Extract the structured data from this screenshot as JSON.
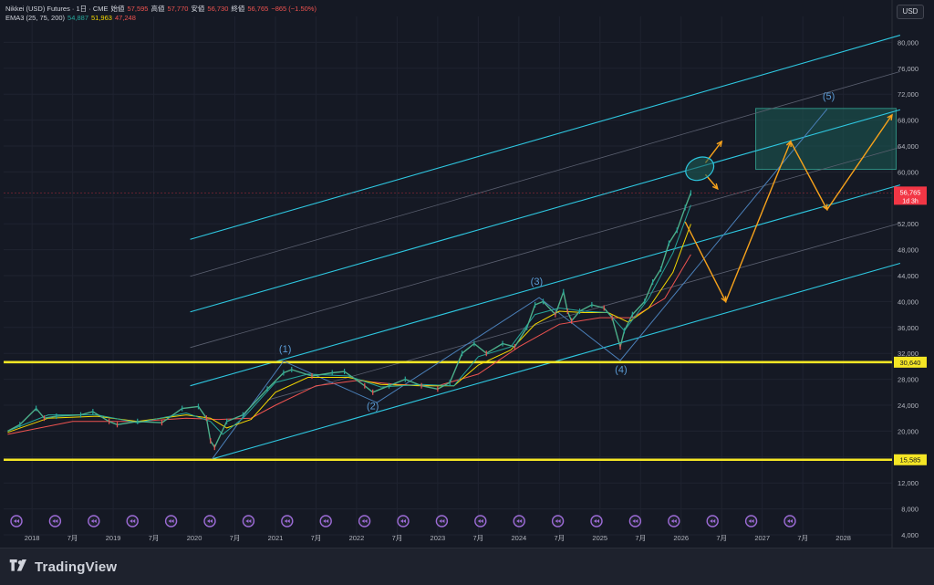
{
  "legend": {
    "symbol": "Nikkei (USD) Futures · 1日 · CME",
    "open_label": "始値",
    "open": "57,595",
    "high_label": "高値",
    "high": "57,770",
    "low_label": "安値",
    "low": "56,730",
    "close_label": "終値",
    "close": "56,765",
    "change": "−865 (−1.50%)",
    "ema_label": "EMA3 (25, 75, 200)",
    "ema_values": [
      "54,887",
      "51,963",
      "47,248"
    ]
  },
  "currency_button": "USD",
  "branding": "TradingView",
  "colors": {
    "background": "#151924",
    "ema25": "#26a69a",
    "ema75": "#f5d800",
    "ema200": "#ef5350",
    "horizontal_levels": "#f5e625",
    "channel_main": "#2ec7e0",
    "channel_minor": "#5b6070",
    "projection": "#f7a21b",
    "wave_labels": "#5b9bd5",
    "last_price_badge": "#f23645"
  },
  "chart_data": {
    "type": "line",
    "title": "",
    "xlabel": "",
    "ylabel": "",
    "ylim": [
      4000,
      84000
    ],
    "xlim": [
      2017.65,
      2028.6
    ],
    "y_ticks": [
      4000,
      8000,
      12000,
      16000,
      20000,
      24000,
      28000,
      32000,
      36000,
      40000,
      44000,
      48000,
      52000,
      56000,
      60000,
      64000,
      68000,
      72000,
      76000,
      80000
    ],
    "y_tick_labels": [
      "4,000",
      "8,000",
      "12,000",
      "16,000",
      "20,000",
      "24,000",
      "28,000",
      "32,000",
      "36,000",
      "40,000",
      "44,000",
      "48,000",
      "52,000",
      "56,000",
      "60,000",
      "64,000",
      "68,000",
      "72,000",
      "76,000",
      "80,000"
    ],
    "x_ticks": [
      {
        "label": "2018",
        "x": 2018.0
      },
      {
        "label": "7月",
        "x": 2018.5
      },
      {
        "label": "2019",
        "x": 2019.0
      },
      {
        "label": "7月",
        "x": 2019.5
      },
      {
        "label": "2020",
        "x": 2020.0
      },
      {
        "label": "7月",
        "x": 2020.5
      },
      {
        "label": "2021",
        "x": 2021.0
      },
      {
        "label": "7月",
        "x": 2021.5
      },
      {
        "label": "2022",
        "x": 2022.0
      },
      {
        "label": "7月",
        "x": 2022.5
      },
      {
        "label": "2023",
        "x": 2023.0
      },
      {
        "label": "7月",
        "x": 2023.5
      },
      {
        "label": "2024",
        "x": 2024.0
      },
      {
        "label": "7月",
        "x": 2024.5
      },
      {
        "label": "2025",
        "x": 2025.0
      },
      {
        "label": "7月",
        "x": 2025.5
      },
      {
        "label": "2026",
        "x": 2026.0
      },
      {
        "label": "7月",
        "x": 2026.5
      },
      {
        "label": "2027",
        "x": 2027.0
      },
      {
        "label": "7月",
        "x": 2027.5
      },
      {
        "label": "2028",
        "x": 2028.0
      }
    ],
    "price_series": {
      "name": "",
      "x": [
        2017.7,
        2017.85,
        2018.05,
        2018.15,
        2018.3,
        2018.6,
        2018.75,
        2018.95,
        2019.05,
        2019.3,
        2019.6,
        2019.85,
        2020.05,
        2020.15,
        2020.2,
        2020.25,
        2020.4,
        2020.6,
        2020.9,
        2021.1,
        2021.2,
        2021.45,
        2021.7,
        2021.85,
        2022.1,
        2022.2,
        2022.4,
        2022.6,
        2022.8,
        2023.0,
        2023.15,
        2023.3,
        2023.45,
        2023.6,
        2023.8,
        2023.95,
        2024.1,
        2024.2,
        2024.3,
        2024.45,
        2024.55,
        2024.6,
        2024.65,
        2024.75,
        2024.9,
        2025.05,
        2025.15,
        2025.25,
        2025.3,
        2025.4,
        2025.55,
        2025.65,
        2025.75,
        2025.85,
        2025.95,
        2026.05,
        2026.12
      ],
      "y": [
        20000,
        21000,
        23500,
        22000,
        22300,
        22500,
        23000,
        21500,
        21000,
        21500,
        21300,
        23500,
        23800,
        22000,
        18500,
        17500,
        21500,
        22500,
        26500,
        29000,
        29500,
        28500,
        29000,
        29200,
        27000,
        26000,
        27000,
        28000,
        27000,
        26500,
        27500,
        32000,
        33500,
        32000,
        33500,
        33000,
        36000,
        39500,
        40000,
        38000,
        41500,
        38500,
        37000,
        38500,
        39500,
        39000,
        37500,
        33000,
        35500,
        38000,
        40000,
        43000,
        45000,
        49000,
        51000,
        54500,
        56765
      ]
    },
    "ema_series": [
      {
        "name": "EMA 25",
        "x": [
          2017.7,
          2018.2,
          2018.8,
          2019.3,
          2019.9,
          2020.2,
          2020.35,
          2020.6,
          2021.0,
          2021.4,
          2021.9,
          2022.3,
          2022.8,
          2023.2,
          2023.5,
          2023.9,
          2024.2,
          2024.5,
          2024.8,
          2025.1,
          2025.3,
          2025.6,
          2025.9,
          2026.12
        ],
        "y": [
          20000,
          22500,
          22500,
          21300,
          22800,
          21500,
          19500,
          22000,
          27500,
          28800,
          28500,
          26800,
          27200,
          27000,
          31500,
          33000,
          38000,
          39000,
          38500,
          38300,
          35500,
          40500,
          47500,
          54887
        ]
      },
      {
        "name": "EMA 75",
        "x": [
          2017.7,
          2018.2,
          2018.8,
          2019.3,
          2019.9,
          2020.2,
          2020.4,
          2020.7,
          2021.0,
          2021.4,
          2021.9,
          2022.3,
          2022.8,
          2023.2,
          2023.5,
          2023.9,
          2024.2,
          2024.5,
          2024.8,
          2025.1,
          2025.35,
          2025.6,
          2025.9,
          2026.12
        ],
        "y": [
          19800,
          22000,
          22300,
          21500,
          22500,
          22000,
          20500,
          21800,
          26000,
          28300,
          28300,
          27200,
          27000,
          27000,
          30200,
          32500,
          36500,
          38500,
          38300,
          38300,
          36800,
          39000,
          44500,
          51963
        ]
      },
      {
        "name": "EMA 200",
        "x": [
          2017.7,
          2018.5,
          2019.3,
          2019.9,
          2020.3,
          2020.7,
          2021.0,
          2021.5,
          2022.0,
          2022.5,
          2023.0,
          2023.5,
          2024.0,
          2024.5,
          2025.0,
          2025.4,
          2025.8,
          2026.12
        ],
        "y": [
          19500,
          21500,
          21500,
          22000,
          21800,
          22000,
          24000,
          27000,
          27800,
          27200,
          27000,
          28800,
          33000,
          36500,
          37500,
          37500,
          40500,
          47248
        ]
      }
    ],
    "horizontal_levels": [
      {
        "label": "30,640",
        "y": 30640
      },
      {
        "label": "15,585",
        "y": 15585
      }
    ],
    "last_price": {
      "label": "56,765",
      "sublabel": "1d 3h",
      "y": 56765
    },
    "wave_labels": [
      {
        "label": "(1)",
        "x": 2021.12,
        "y": 32200
      },
      {
        "label": "(2)",
        "x": 2022.2,
        "y": 23400
      },
      {
        "label": "(3)",
        "x": 2024.22,
        "y": 42600
      },
      {
        "label": "(4)",
        "x": 2025.26,
        "y": 29000
      },
      {
        "label": "(5)",
        "x": 2027.82,
        "y": 71200
      }
    ],
    "wave_path": {
      "x": [
        2020.22,
        2021.1,
        2022.25,
        2024.25,
        2025.25,
        2027.8
      ],
      "y": [
        15700,
        30800,
        24400,
        40600,
        30900,
        69700
      ]
    },
    "channel_lines": [
      {
        "kind": "main",
        "x": [
          2019.95,
          2028.7
        ],
        "y": [
          49600,
          81100
        ]
      },
      {
        "kind": "minor",
        "x": [
          2019.95,
          2028.7
        ],
        "y": [
          43900,
          75500
        ]
      },
      {
        "kind": "main",
        "x": [
          2019.95,
          2028.7
        ],
        "y": [
          38400,
          69600
        ]
      },
      {
        "kind": "minor",
        "x": [
          2019.95,
          2028.7
        ],
        "y": [
          32900,
          63800
        ]
      },
      {
        "kind": "main",
        "x": [
          2019.95,
          2028.7
        ],
        "y": [
          27000,
          58000
        ]
      },
      {
        "kind": "minor",
        "x": [
          2020.9,
          2028.7
        ],
        "y": [
          24800,
          52100
        ]
      },
      {
        "kind": "main",
        "x": [
          2020.22,
          2028.7
        ],
        "y": [
          15700,
          45900
        ]
      }
    ],
    "target_zone": {
      "x": [
        2026.92,
        2028.65
      ],
      "y": [
        60400,
        69800
      ]
    },
    "projection_path": {
      "x": [
        2026.05,
        2026.55,
        2027.35,
        2027.8,
        2028.6
      ],
      "y": [
        52300,
        40000,
        64700,
        54200,
        68800
      ]
    },
    "breakout_arrows": [
      {
        "from": [
          2026.3,
          61400
        ],
        "to": [
          2026.5,
          64700
        ]
      },
      {
        "from": [
          2026.3,
          59600
        ],
        "to": [
          2026.45,
          57400
        ]
      }
    ],
    "highlight_ellipse": {
      "x": 2026.23,
      "y": 60500
    }
  }
}
